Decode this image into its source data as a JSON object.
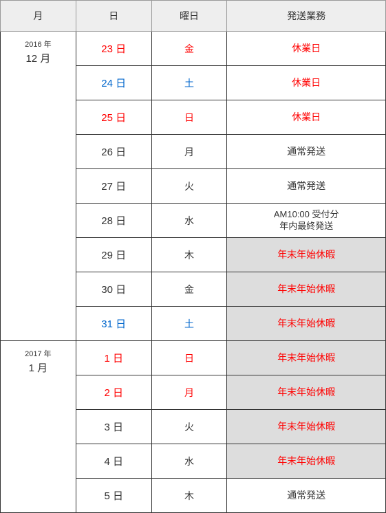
{
  "headers": {
    "month": "月",
    "day": "日",
    "weekday": "曜日",
    "status": "発送業務"
  },
  "colors": {
    "red": "#ff0000",
    "blue": "#0066cc",
    "black": "#333333",
    "bg_gray": "#dddddd",
    "bg_white": "#ffffff",
    "header_bg": "#eeeeee",
    "border": "#333333",
    "header_border": "#999999"
  },
  "months": [
    {
      "year_label": "2016 年",
      "month_label": "12 月",
      "rowspan": 9,
      "rows": [
        {
          "day": "23 日",
          "day_color": "red",
          "weekday": "金",
          "weekday_color": "red",
          "status": "休業日",
          "status_color": "red",
          "status_bg": "white"
        },
        {
          "day": "24 日",
          "day_color": "blue",
          "weekday": "土",
          "weekday_color": "blue",
          "status": "休業日",
          "status_color": "red",
          "status_bg": "white"
        },
        {
          "day": "25 日",
          "day_color": "red",
          "weekday": "日",
          "weekday_color": "red",
          "status": "休業日",
          "status_color": "red",
          "status_bg": "white"
        },
        {
          "day": "26 日",
          "day_color": "black",
          "weekday": "月",
          "weekday_color": "black",
          "status": "通常発送",
          "status_color": "black",
          "status_bg": "white"
        },
        {
          "day": "27 日",
          "day_color": "black",
          "weekday": "火",
          "weekday_color": "black",
          "status": "通常発送",
          "status_color": "black",
          "status_bg": "white"
        },
        {
          "day": "28 日",
          "day_color": "black",
          "weekday": "水",
          "weekday_color": "black",
          "status": "AM10:00 受付分\n年内最終発送",
          "status_color": "black",
          "status_bg": "white",
          "multiline": true
        },
        {
          "day": "29 日",
          "day_color": "black",
          "weekday": "木",
          "weekday_color": "black",
          "status": "年末年始休暇",
          "status_color": "red",
          "status_bg": "gray"
        },
        {
          "day": "30 日",
          "day_color": "black",
          "weekday": "金",
          "weekday_color": "black",
          "status": "年末年始休暇",
          "status_color": "red",
          "status_bg": "gray"
        },
        {
          "day": "31 日",
          "day_color": "blue",
          "weekday": "土",
          "weekday_color": "blue",
          "status": "年末年始休暇",
          "status_color": "red",
          "status_bg": "gray"
        }
      ]
    },
    {
      "year_label": "2017 年",
      "month_label": "1 月",
      "rowspan": 5,
      "rows": [
        {
          "day": "1 日",
          "day_color": "red",
          "weekday": "日",
          "weekday_color": "red",
          "status": "年末年始休暇",
          "status_color": "red",
          "status_bg": "gray"
        },
        {
          "day": "2 日",
          "day_color": "red",
          "weekday": "月",
          "weekday_color": "red",
          "status": "年末年始休暇",
          "status_color": "red",
          "status_bg": "gray"
        },
        {
          "day": "3 日",
          "day_color": "black",
          "weekday": "火",
          "weekday_color": "black",
          "status": "年末年始休暇",
          "status_color": "red",
          "status_bg": "gray"
        },
        {
          "day": "4 日",
          "day_color": "black",
          "weekday": "水",
          "weekday_color": "black",
          "status": "年末年始休暇",
          "status_color": "red",
          "status_bg": "gray"
        },
        {
          "day": "5 日",
          "day_color": "black",
          "weekday": "木",
          "weekday_color": "black",
          "status": "通常発送",
          "status_color": "black",
          "status_bg": "white"
        }
      ]
    }
  ]
}
